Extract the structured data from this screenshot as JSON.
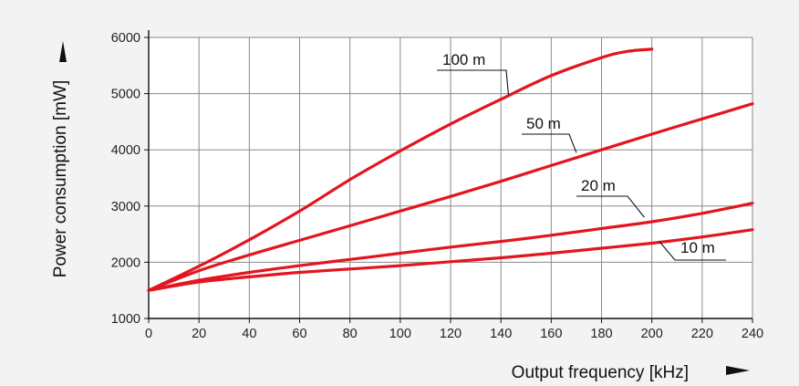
{
  "chart_data": {
    "type": "line",
    "title": "",
    "xlabel": "Output frequency [kHz]",
    "ylabel": "Power consumption [mW]",
    "xlim": [
      0,
      240
    ],
    "ylim": [
      1000,
      6000
    ],
    "xticks": [
      0,
      20,
      40,
      60,
      80,
      100,
      120,
      140,
      160,
      180,
      200,
      220,
      240
    ],
    "yticks": [
      1000,
      2000,
      3000,
      4000,
      5000,
      6000
    ],
    "xtick_labels": [
      "0",
      "20",
      "40",
      "60",
      "80",
      "100",
      "120",
      "140",
      "160",
      "180",
      "200",
      "220",
      "240"
    ],
    "ytick_labels": [
      "1000",
      "2000",
      "3000",
      "4000",
      "5000",
      "6000"
    ],
    "grid": true,
    "legend": "none",
    "series_color": "#e3151f",
    "background_color": "#f3f3f3",
    "plot_background_color": "#ffffff",
    "series": [
      {
        "name": "100 m",
        "x": [
          0,
          20,
          40,
          60,
          80,
          100,
          120,
          140,
          160,
          180,
          190,
          200
        ],
        "values": [
          1500,
          1930,
          2400,
          2910,
          3470,
          3980,
          4460,
          4900,
          5320,
          5640,
          5750,
          5790
        ]
      },
      {
        "name": "50 m",
        "x": [
          0,
          20,
          40,
          60,
          80,
          100,
          120,
          140,
          160,
          180,
          200,
          220,
          240
        ],
        "values": [
          1500,
          1850,
          2130,
          2390,
          2650,
          2910,
          3170,
          3440,
          3720,
          4000,
          4280,
          4550,
          4820
        ]
      },
      {
        "name": "20 m",
        "x": [
          0,
          20,
          40,
          60,
          80,
          100,
          120,
          140,
          160,
          180,
          200,
          220,
          240
        ],
        "values": [
          1500,
          1680,
          1820,
          1940,
          2050,
          2160,
          2270,
          2370,
          2480,
          2600,
          2720,
          2870,
          3050
        ]
      },
      {
        "name": "10 m",
        "x": [
          0,
          20,
          40,
          60,
          80,
          100,
          120,
          140,
          160,
          180,
          200,
          220,
          240
        ],
        "values": [
          1500,
          1650,
          1740,
          1820,
          1880,
          1940,
          2010,
          2080,
          2160,
          2250,
          2340,
          2450,
          2580
        ]
      }
    ],
    "series_labels": [
      {
        "text": "100 m",
        "at_x": 143,
        "at_y": 4980
      },
      {
        "text": "50 m",
        "at_x": 170,
        "at_y": 3950
      },
      {
        "text": "20 m",
        "at_x": 197,
        "at_y": 2800
      },
      {
        "text": "10 m",
        "at_x": 203,
        "at_y": 2370
      }
    ]
  }
}
